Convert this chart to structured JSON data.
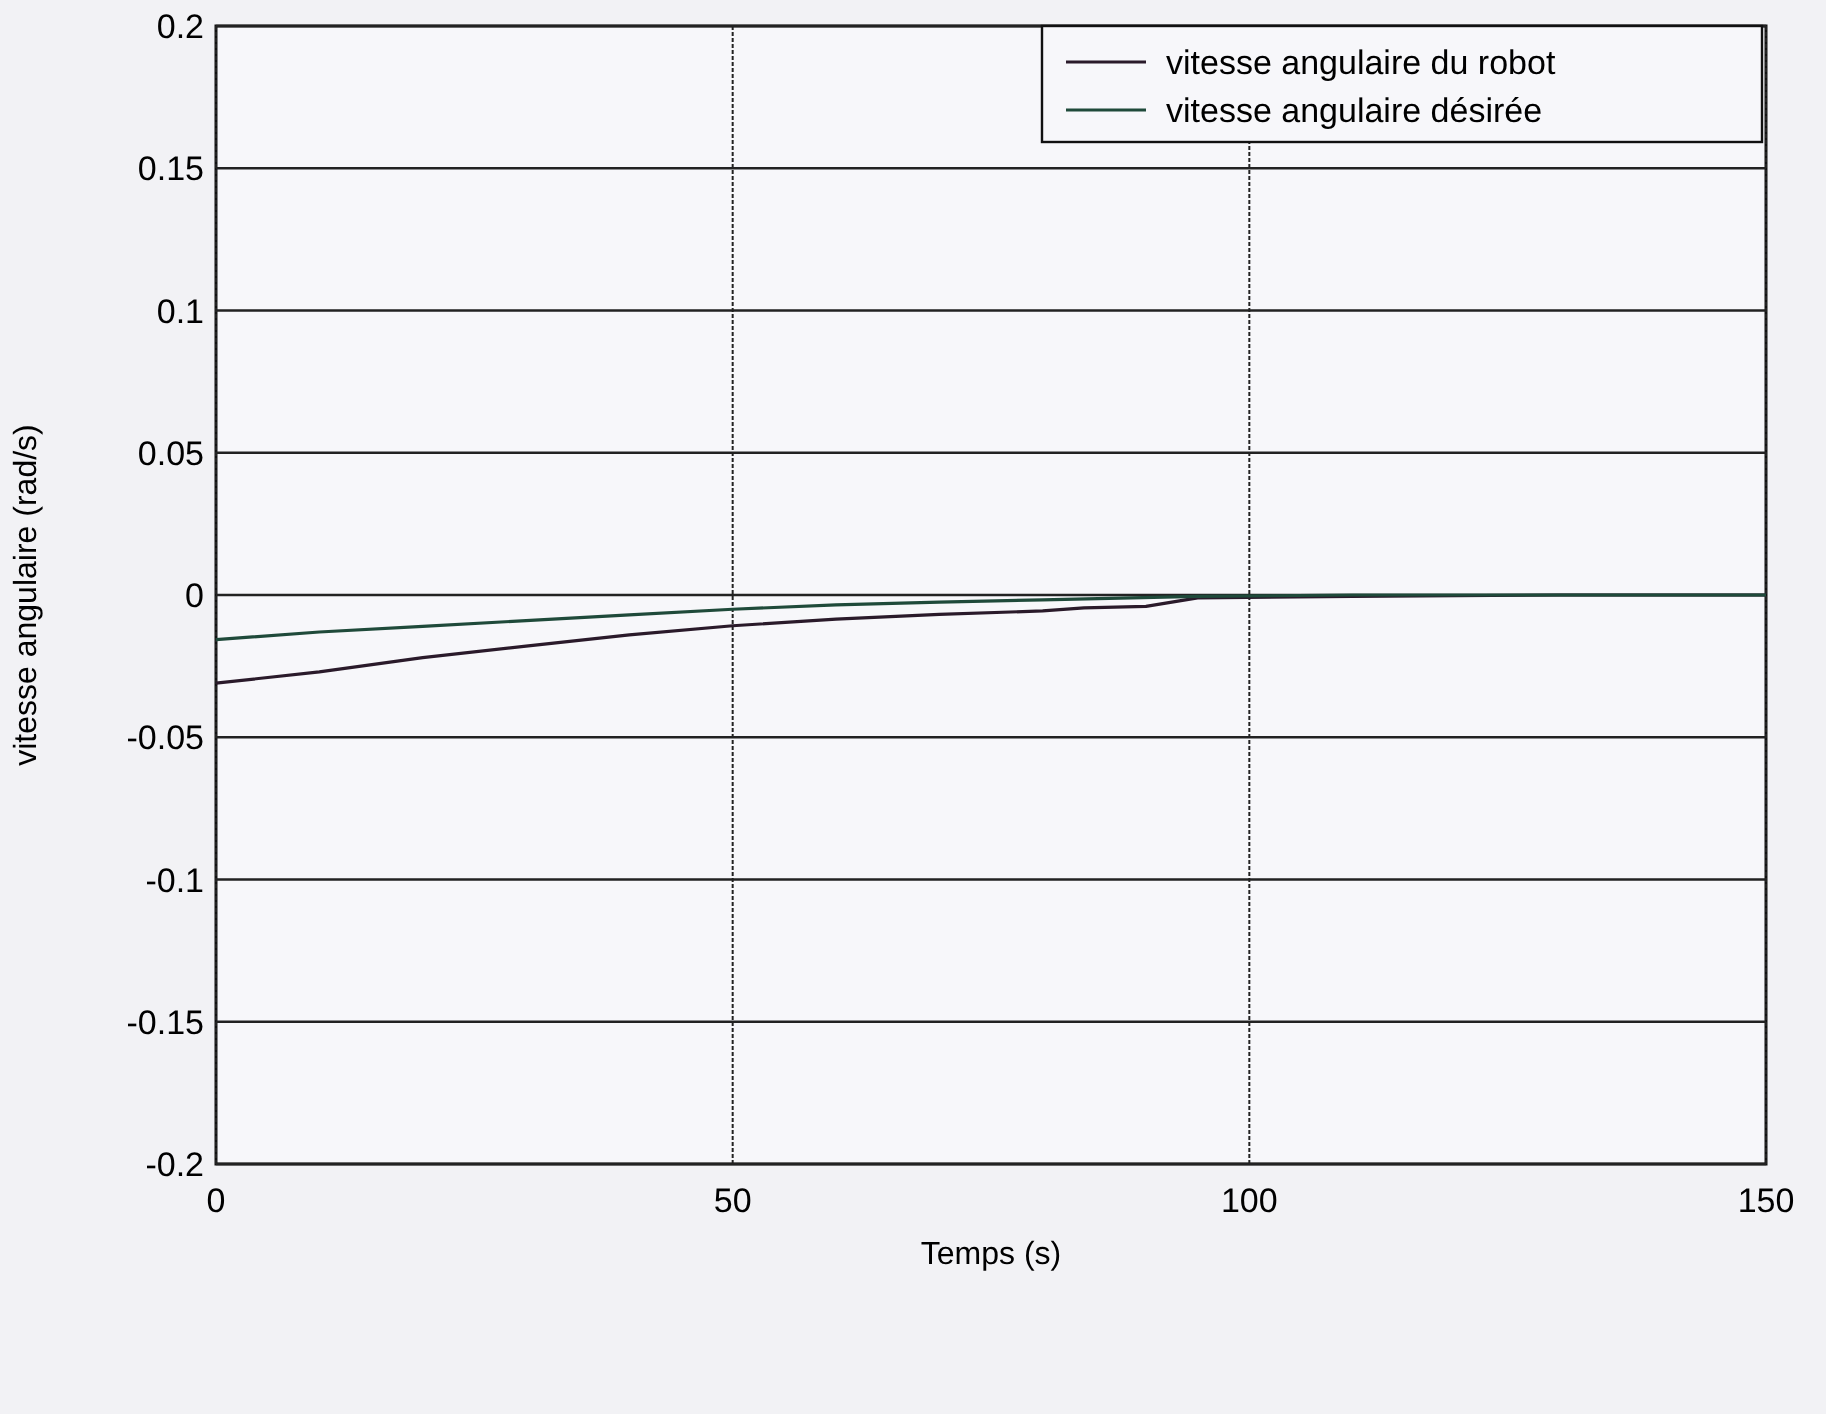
{
  "chart_data": {
    "type": "line",
    "xlabel": "Temps (s)",
    "ylabel": "vitesse angulaire (rad/s)",
    "xlim": [
      0,
      150
    ],
    "xticks": [
      0,
      50,
      100,
      150
    ],
    "ylim": [
      -0.2,
      0.2
    ],
    "yticks": [
      -0.2,
      -0.15,
      -0.1,
      -0.05,
      0,
      0.05,
      0.1,
      0.15,
      0.2
    ],
    "grid": true,
    "legend": "top right",
    "series": [
      {
        "name": "vitesse angulaire du robot",
        "color": "#2a1a2a",
        "x": [
          0,
          10,
          20,
          30,
          40,
          50,
          60,
          70,
          80,
          84,
          90,
          95,
          110,
          130,
          150
        ],
        "values": [
          -0.031,
          -0.027,
          -0.022,
          -0.018,
          -0.014,
          -0.0108,
          -0.0085,
          -0.0068,
          -0.0056,
          -0.0045,
          -0.004,
          -0.001,
          -0.0005,
          0,
          0
        ]
      },
      {
        "name": "vitesse angulaire désirée",
        "color": "#1f4a3a",
        "x": [
          0,
          10,
          20,
          30,
          40,
          50,
          60,
          70,
          80,
          95,
          110,
          150
        ],
        "values": [
          -0.0157,
          -0.013,
          -0.011,
          -0.009,
          -0.007,
          -0.005,
          -0.0035,
          -0.0025,
          -0.0017,
          -0.0005,
          0,
          0
        ]
      }
    ]
  }
}
